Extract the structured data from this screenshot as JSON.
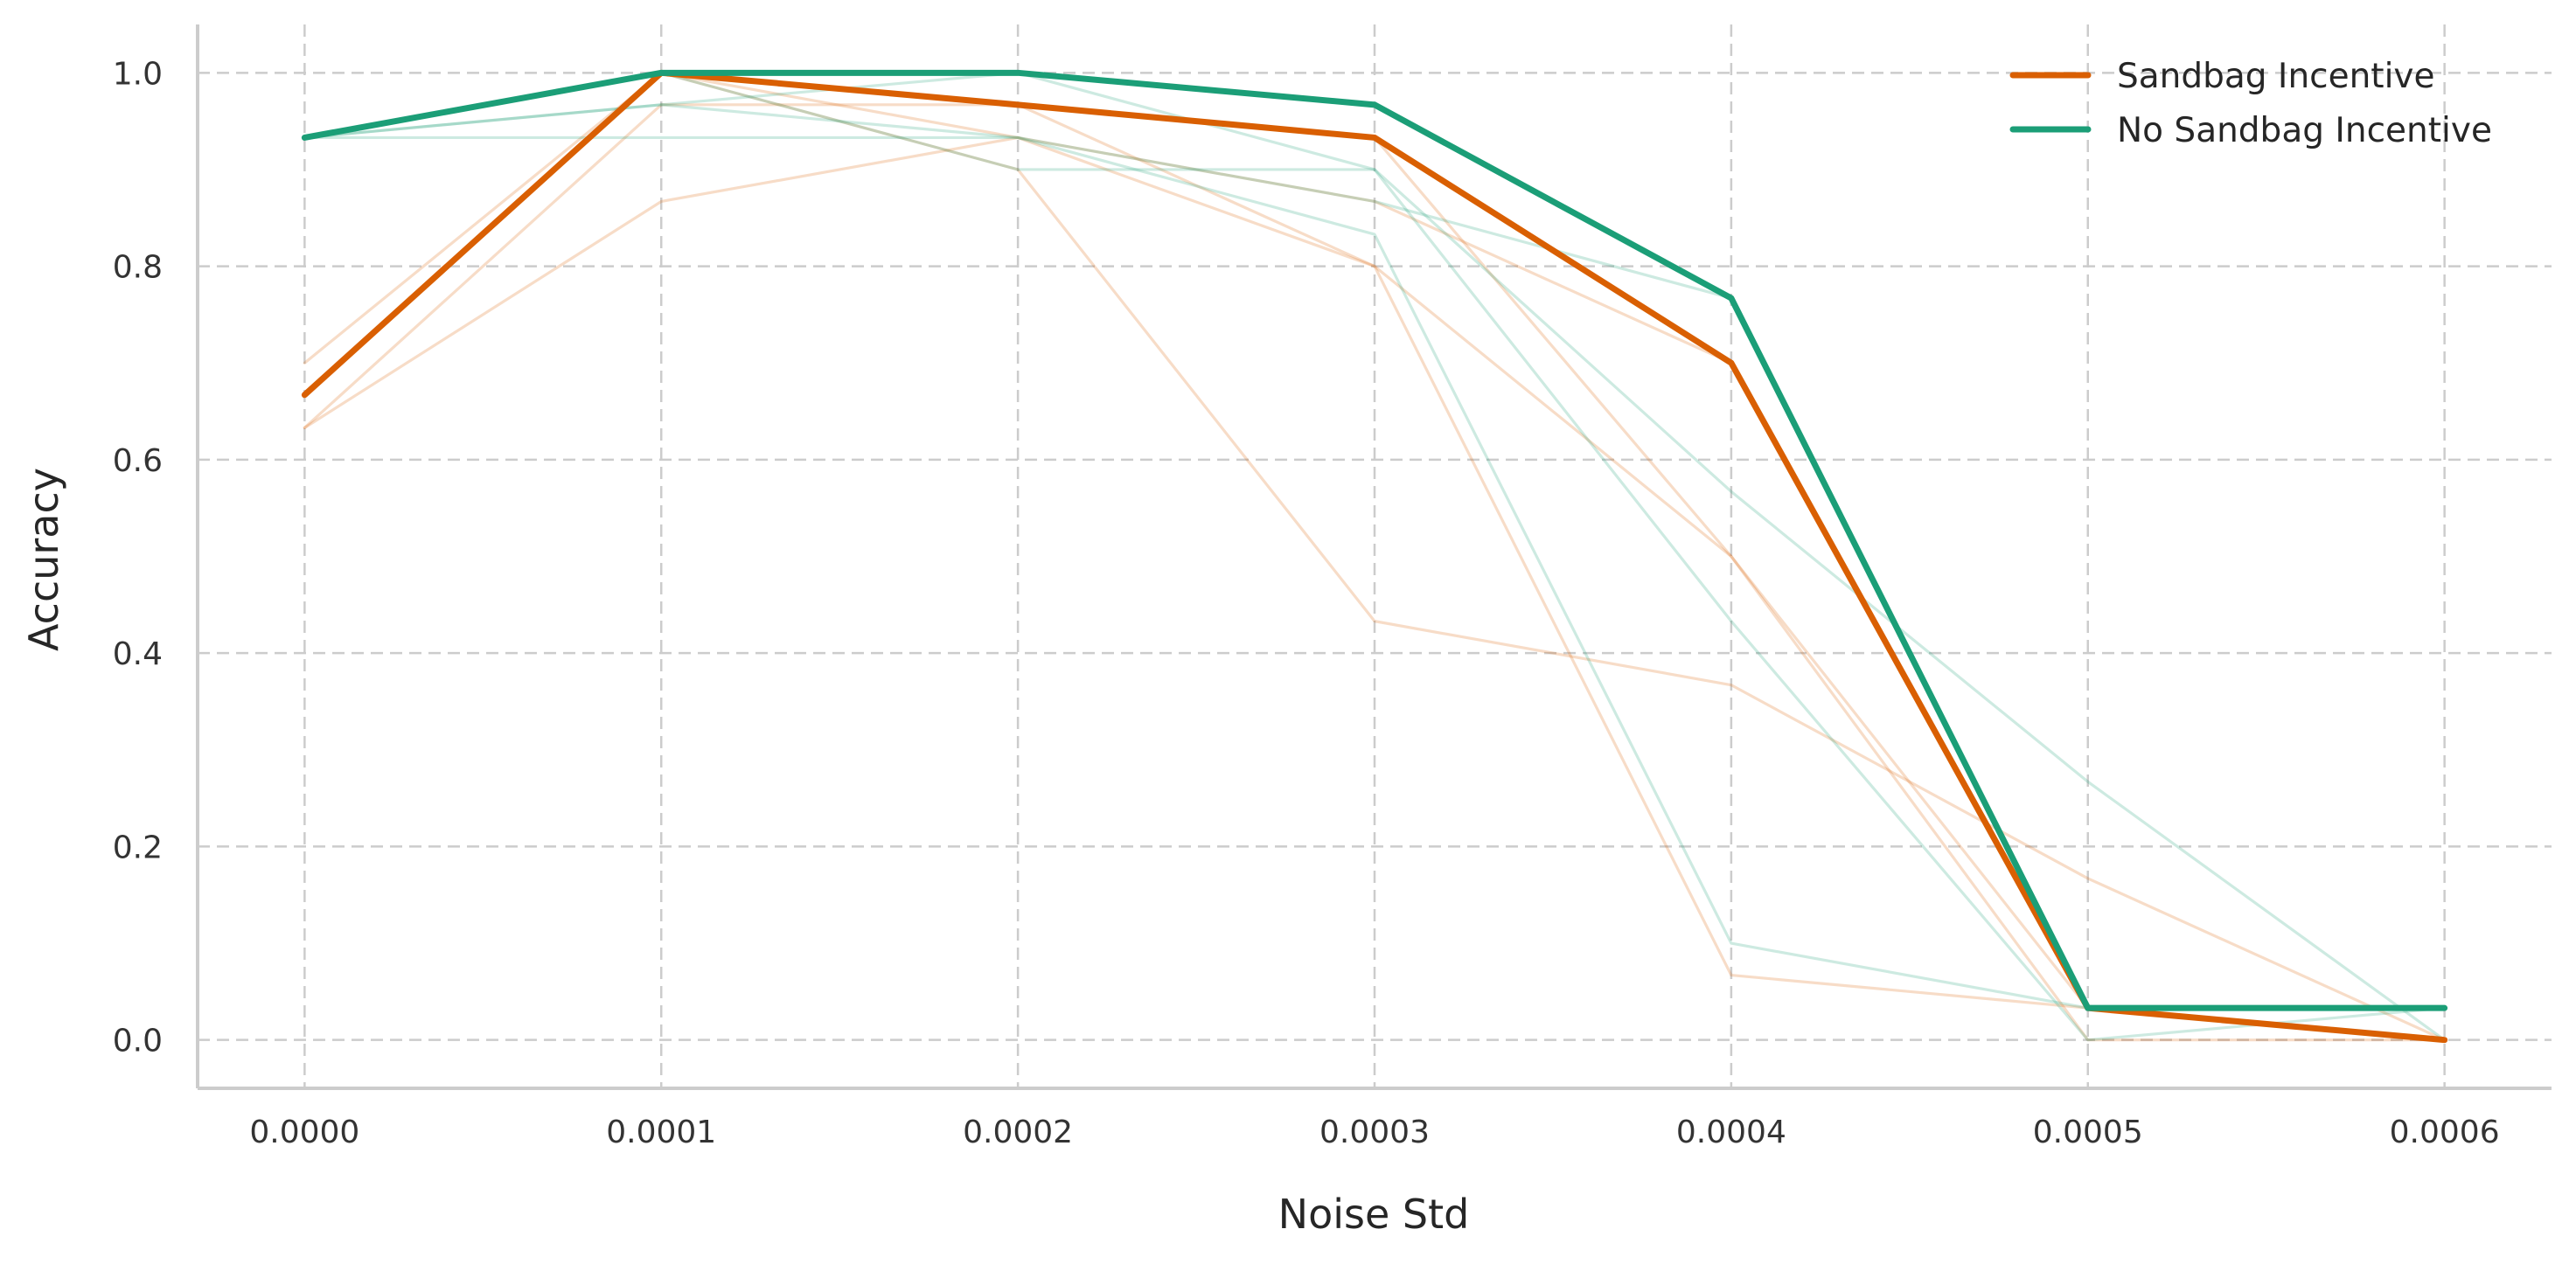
{
  "chart_data": {
    "type": "line",
    "title": "",
    "xlabel": "Noise Std",
    "ylabel": "Accuracy",
    "x": [
      0.0,
      0.0001,
      0.0002,
      0.0003,
      0.0004,
      0.0005,
      0.0006
    ],
    "x_tick_labels": [
      "0.0000",
      "0.0001",
      "0.0002",
      "0.0003",
      "0.0004",
      "0.0005",
      "0.0006"
    ],
    "y_ticks": [
      0.0,
      0.2,
      0.4,
      0.6,
      0.8,
      1.0
    ],
    "y_tick_labels": [
      "0.0",
      "0.2",
      "0.4",
      "0.6",
      "0.8",
      "1.0"
    ],
    "xlim": [
      -3e-05,
      0.00063
    ],
    "ylim": [
      -0.05,
      1.05
    ],
    "grid": true,
    "legend_position": "top-right",
    "series": [
      {
        "name": "Sandbag Incentive",
        "color": "#d95f02",
        "values": [
          0.667,
          1.0,
          0.967,
          0.933,
          0.7,
          0.033,
          0.0
        ]
      },
      {
        "name": "No Sandbag Incentive",
        "color": "#1b9e77",
        "values": [
          0.933,
          1.0,
          1.0,
          0.967,
          0.767,
          0.033,
          0.033
        ]
      }
    ],
    "individual_runs": [
      {
        "group": "Sandbag Incentive",
        "color": "#d95f02",
        "values": [
          0.633,
          0.967,
          0.967,
          0.8,
          0.5,
          0.0,
          0.0
        ]
      },
      {
        "group": "Sandbag Incentive",
        "color": "#d95f02",
        "values": [
          0.633,
          0.867,
          0.933,
          0.867,
          0.7,
          0.033,
          0.0
        ]
      },
      {
        "group": "Sandbag Incentive",
        "color": "#d95f02",
        "values": [
          0.667,
          1.0,
          0.9,
          0.433,
          0.367,
          0.167,
          0.0
        ]
      },
      {
        "group": "Sandbag Incentive",
        "color": "#d95f02",
        "values": [
          0.7,
          1.0,
          0.933,
          0.8,
          0.067,
          0.033,
          0.0
        ]
      },
      {
        "group": "Sandbag Incentive",
        "color": "#d95f02",
        "values": [
          0.667,
          1.0,
          0.967,
          0.933,
          0.5,
          0.033,
          0.0
        ]
      },
      {
        "group": "No Sandbag Incentive",
        "color": "#1b9e77",
        "values": [
          0.933,
          0.933,
          0.933,
          0.867,
          0.767,
          0.033,
          0.033
        ]
      },
      {
        "group": "No Sandbag Incentive",
        "color": "#1b9e77",
        "values": [
          0.933,
          0.967,
          0.933,
          0.833,
          0.1,
          0.033,
          0.033
        ]
      },
      {
        "group": "No Sandbag Incentive",
        "color": "#1b9e77",
        "values": [
          0.933,
          1.0,
          0.9,
          0.9,
          0.433,
          0.0,
          0.033
        ]
      },
      {
        "group": "No Sandbag Incentive",
        "color": "#1b9e77",
        "values": [
          0.933,
          0.967,
          1.0,
          0.9,
          0.567,
          0.267,
          0.0
        ]
      }
    ]
  }
}
